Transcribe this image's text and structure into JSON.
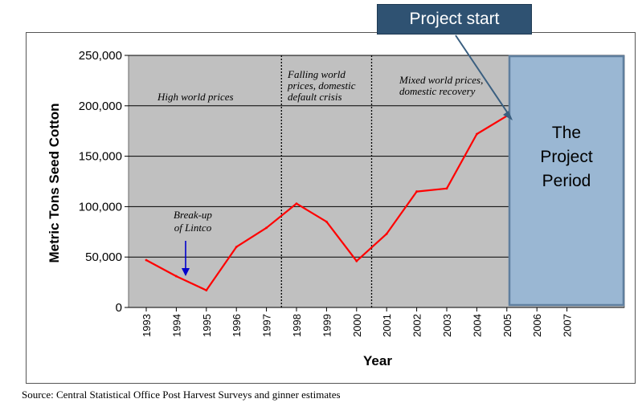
{
  "callout": {
    "label": "Project start"
  },
  "source": {
    "text": "Source: Central Statistical Office Post Harvest Surveys and ginner estimates"
  },
  "colors": {
    "plot_bg": "#c0c0c0",
    "line": "#ff0000",
    "project_fill": "#9ab7d3",
    "project_border": "#5f7f9f",
    "callout_bg": "#2f5272",
    "break_arrow": "#0000cc"
  },
  "chart_data": {
    "type": "line",
    "title": "",
    "xlabel": "Year",
    "ylabel": "Metric Tons Seed Cotton",
    "ylim": [
      0,
      250000
    ],
    "yticks": [
      "0",
      "50,000",
      "100,000",
      "150,000",
      "200,000",
      "250,000"
    ],
    "categories": [
      "1993",
      "1994",
      "1995",
      "1996",
      "1997",
      "1998",
      "1999",
      "2000",
      "2001",
      "2002",
      "2003",
      "2004",
      "2005",
      "2006",
      "2007"
    ],
    "series": [
      {
        "values": [
          47000,
          31000,
          17000,
          60000,
          79000,
          103000,
          85000,
          46000,
          73000,
          115000,
          118000,
          172000,
          190000,
          null,
          null
        ]
      }
    ],
    "grid": "horizontal",
    "eras": [
      {
        "lines": [
          "High world prices"
        ]
      },
      {
        "lines": [
          "Falling world",
          "prices, domestic",
          "default crisis"
        ]
      },
      {
        "lines": [
          "Mixed world prices,",
          "domestic recovery"
        ]
      }
    ],
    "annotations": {
      "breakup": [
        "Break-up",
        "of Lintco"
      ],
      "project_period": [
        "The",
        "Project",
        "Period"
      ]
    }
  }
}
